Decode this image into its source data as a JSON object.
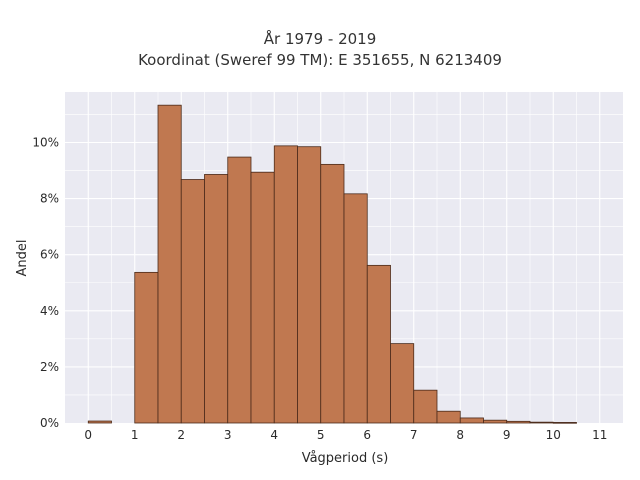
{
  "chart_data": {
    "type": "bar",
    "title_lines": [
      "År 1979 - 2019",
      "Koordinat (Sweref 99 TM): E 351655, N 6213409"
    ],
    "xlabel": "Vågperiod (s)",
    "ylabel": "Andel",
    "xlim": [
      -0.5,
      11.5
    ],
    "ylim": [
      0,
      0.118
    ],
    "x_ticks": [
      0,
      1,
      2,
      3,
      4,
      5,
      6,
      7,
      8,
      9,
      10,
      11
    ],
    "x_tick_labels": [
      "0",
      "1",
      "2",
      "3",
      "4",
      "5",
      "6",
      "7",
      "8",
      "9",
      "10",
      "11"
    ],
    "y_ticks": [
      0,
      0.02,
      0.04,
      0.06,
      0.08,
      0.1
    ],
    "y_tick_labels": [
      "0%",
      "2%",
      "4%",
      "6%",
      "8%",
      "10%"
    ],
    "bin_width": 0.5,
    "bin_starts": [
      0,
      0.5,
      1,
      1.5,
      2,
      2.5,
      3,
      3.5,
      4,
      4.5,
      5,
      5.5,
      6,
      6.5,
      7,
      7.5,
      8,
      8.5,
      9,
      9.5,
      10,
      10.5
    ],
    "values": [
      0.0007,
      0,
      0.0537,
      0.1133,
      0.0868,
      0.0886,
      0.0948,
      0.0894,
      0.0988,
      0.0985,
      0.0922,
      0.0817,
      0.0562,
      0.0283,
      0.0117,
      0.0042,
      0.0018,
      0.001,
      0.0006,
      0.0003,
      0.0002,
      0
    ],
    "grid": true,
    "colors": {
      "bar_fill": "#c07850",
      "bar_edge": "#4a2a1a",
      "plot_bg": "#eaeaf2",
      "grid": "#ffffff"
    }
  }
}
